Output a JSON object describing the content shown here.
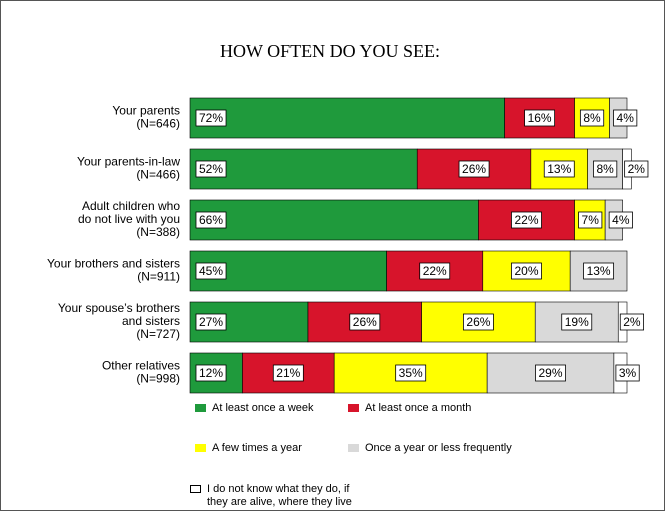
{
  "chart_data": {
    "type": "stacked-barh",
    "title": "HOW OFTEN DO YOU SEE:",
    "categories": [
      [
        "Your parents",
        "(N=646)"
      ],
      [
        "Your parents-in-law",
        "(N=466)"
      ],
      [
        "Adult children who",
        "do not live with you",
        "(N=388)"
      ],
      [
        "Your brothers and sisters",
        "(N=911)"
      ],
      [
        "Your spouse’s brothers",
        "and sisters",
        "(N=727)"
      ],
      [
        "Other relatives",
        "(N=998)"
      ]
    ],
    "series": [
      {
        "name": "At least once a week",
        "color": "#1f9a3c",
        "values": [
          72,
          52,
          66,
          45,
          27,
          12
        ],
        "value_labels": [
          "72%",
          "52%",
          "66%",
          "45%",
          "27%",
          "12%"
        ]
      },
      {
        "name": "At least once a month",
        "color": "#d7142b",
        "values": [
          16,
          26,
          22,
          22,
          26,
          21
        ],
        "value_labels": [
          "16%",
          "26%",
          "22%",
          "22%",
          "26%",
          "21%"
        ]
      },
      {
        "name": "A few times a year",
        "color": "#ffff00",
        "values": [
          8,
          13,
          7,
          20,
          26,
          35
        ],
        "value_labels": [
          "8%",
          "13%",
          "7%",
          "20%",
          "26%",
          "35%"
        ]
      },
      {
        "name": "Once a year or less frequently",
        "color": "#d9d9d9",
        "values": [
          4,
          8,
          4,
          13,
          19,
          29
        ],
        "value_labels": [
          "4%",
          "8%",
          "4%",
          "13%",
          "19%",
          "29%"
        ]
      },
      {
        "name": "I do not know what they do, if they are alive, where they live",
        "color": "#ffffff",
        "values": [
          null,
          2,
          null,
          null,
          2,
          3
        ],
        "value_labels": [
          null,
          "2%",
          null,
          null,
          "2%",
          "3%"
        ]
      }
    ],
    "xlim": [
      0,
      100
    ]
  }
}
